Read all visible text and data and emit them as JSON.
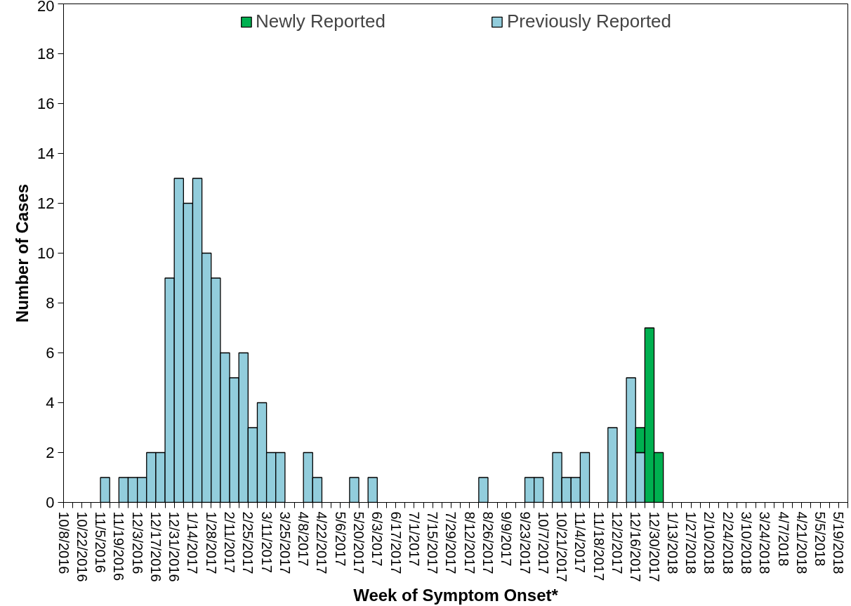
{
  "chart_data": {
    "type": "bar",
    "stacked": true,
    "xlabel": "Week of Symptom Onset*",
    "ylabel": "Number of Cases",
    "categories": [
      "10/8/2016",
      null,
      "10/22/2016",
      null,
      "11/5/2016",
      null,
      "11/19/2016",
      null,
      "12/3/2016",
      null,
      "12/17/2016",
      null,
      "12/31/2016",
      null,
      "1/14/2017",
      null,
      "1/28/2017",
      null,
      "2/11/2017",
      null,
      "2/25/2017",
      null,
      "3/11/2017",
      null,
      "3/25/2017",
      null,
      "4/8/2017",
      null,
      "4/22/2017",
      null,
      "5/6/2017",
      null,
      "5/20/2017",
      null,
      "6/3/2017",
      null,
      "6/17/2017",
      null,
      "7/1/2017",
      null,
      "7/15/2017",
      null,
      "7/29/2017",
      null,
      "8/12/2017",
      null,
      "8/26/2017",
      null,
      "9/9/2017",
      null,
      "9/23/2017",
      null,
      "10/7/2017",
      null,
      "10/21/2017",
      null,
      "11/4/2017",
      null,
      "11/18/2017",
      null,
      "12/2/2017",
      null,
      "12/16/2017",
      null,
      "12/30/2017",
      null,
      "1/13/2018",
      null,
      "1/27/2018",
      null,
      "2/10/2018",
      null,
      "2/24/2018",
      null,
      "3/10/2018",
      null,
      "3/24/2018",
      null,
      "4/7/2018",
      null,
      "4/21/2018",
      null,
      "5/5/2018",
      null,
      "5/19/2018"
    ],
    "series": [
      {
        "name": "Previously Reported",
        "color": "#92cddc",
        "values": [
          0,
          0,
          0,
          0,
          1,
          0,
          1,
          1,
          1,
          2,
          2,
          9,
          13,
          12,
          13,
          10,
          9,
          6,
          5,
          6,
          3,
          4,
          2,
          2,
          0,
          0,
          2,
          1,
          0,
          0,
          0,
          1,
          0,
          1,
          0,
          0,
          0,
          0,
          0,
          0,
          0,
          0,
          0,
          0,
          0,
          1,
          0,
          0,
          0,
          0,
          1,
          1,
          0,
          2,
          1,
          1,
          2,
          0,
          0,
          3,
          0,
          5,
          2,
          0,
          0,
          0,
          0,
          0,
          0,
          0,
          0,
          0,
          0,
          0,
          0,
          0,
          0,
          0,
          0,
          0,
          0,
          0,
          0,
          0,
          0
        ]
      },
      {
        "name": "Newly Reported",
        "color": "#00b050",
        "values": [
          0,
          0,
          0,
          0,
          0,
          0,
          0,
          0,
          0,
          0,
          0,
          0,
          0,
          0,
          0,
          0,
          0,
          0,
          0,
          0,
          0,
          0,
          0,
          0,
          0,
          0,
          0,
          0,
          0,
          0,
          0,
          0,
          0,
          0,
          0,
          0,
          0,
          0,
          0,
          0,
          0,
          0,
          0,
          0,
          0,
          0,
          0,
          0,
          0,
          0,
          0,
          0,
          0,
          0,
          0,
          0,
          0,
          0,
          0,
          0,
          0,
          0,
          1,
          7,
          2,
          0,
          0,
          0,
          0,
          0,
          0,
          0,
          0,
          0,
          0,
          0,
          0,
          0,
          0,
          0,
          0,
          0,
          0,
          0,
          0
        ]
      }
    ],
    "ylim": [
      0,
      20
    ],
    "yticks": [
      0,
      2,
      4,
      6,
      8,
      10,
      12,
      14,
      16,
      18,
      20
    ],
    "grid": false,
    "legend": "top"
  }
}
